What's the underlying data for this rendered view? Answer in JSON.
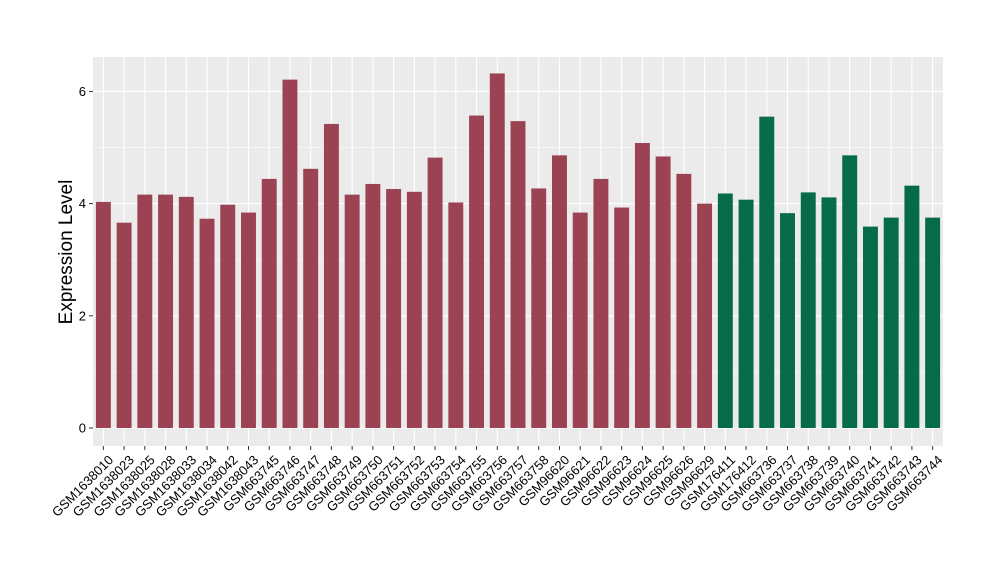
{
  "chart_data": {
    "type": "bar",
    "ylabel": "Expression Level",
    "xlabel": "",
    "ylim": [
      0,
      6.6
    ],
    "yticks": [
      0,
      2,
      4,
      6
    ],
    "grid": true,
    "categories": [
      "GSM1638010",
      "GSM1638023",
      "GSM1638025",
      "GSM1638028",
      "GSM1638033",
      "GSM1638034",
      "GSM1638042",
      "GSM1638043",
      "GSM663745",
      "GSM663746",
      "GSM663747",
      "GSM663748",
      "GSM663749",
      "GSM663750",
      "GSM663751",
      "GSM663752",
      "GSM663753",
      "GSM663754",
      "GSM663755",
      "GSM663756",
      "GSM663757",
      "GSM663758",
      "GSM96620",
      "GSM96621",
      "GSM96622",
      "GSM96623",
      "GSM96624",
      "GSM96625",
      "GSM96626",
      "GSM96629",
      "GSM176411",
      "GSM176412",
      "GSM663736",
      "GSM663737",
      "GSM663738",
      "GSM663739",
      "GSM663740",
      "GSM663741",
      "GSM663742",
      "GSM663743",
      "GSM663744"
    ],
    "values": [
      4.03,
      3.66,
      4.16,
      4.16,
      4.12,
      3.73,
      3.98,
      3.84,
      4.44,
      6.21,
      4.62,
      5.42,
      4.16,
      4.35,
      4.26,
      4.21,
      4.82,
      4.02,
      5.57,
      6.32,
      5.47,
      4.27,
      4.86,
      3.84,
      4.44,
      3.93,
      5.08,
      4.84,
      4.53,
      4.0,
      4.18,
      4.07,
      5.55,
      3.83,
      4.2,
      4.11,
      4.86,
      3.59,
      3.75,
      4.32,
      3.75
    ],
    "colors": [
      "#9b4352",
      "#9b4352",
      "#9b4352",
      "#9b4352",
      "#9b4352",
      "#9b4352",
      "#9b4352",
      "#9b4352",
      "#9b4352",
      "#9b4352",
      "#9b4352",
      "#9b4352",
      "#9b4352",
      "#9b4352",
      "#9b4352",
      "#9b4352",
      "#9b4352",
      "#9b4352",
      "#9b4352",
      "#9b4352",
      "#9b4352",
      "#9b4352",
      "#9b4352",
      "#9b4352",
      "#9b4352",
      "#9b4352",
      "#9b4352",
      "#9b4352",
      "#9b4352",
      "#9b4352",
      "#066b48",
      "#066b48",
      "#066b48",
      "#066b48",
      "#066b48",
      "#066b48",
      "#066b48",
      "#066b48",
      "#066b48",
      "#066b48",
      "#066b48"
    ],
    "panel_background": "#ebebeb",
    "grid_color": "#ffffff"
  }
}
